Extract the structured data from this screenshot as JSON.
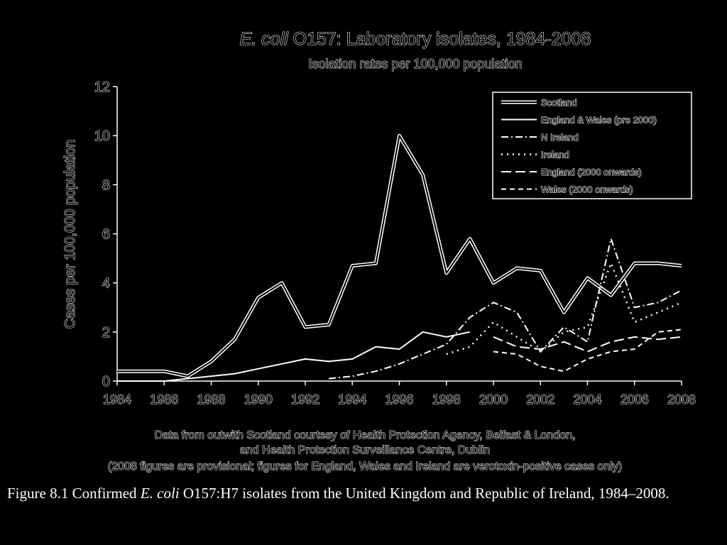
{
  "chart_data": {
    "type": "line",
    "title_italic": "E. coli",
    "title_rest": " O157: Laboratory isolates, 1984-2008",
    "subtitle": "Isolation rates per 100,000 population",
    "ylabel": "Cases per 100,000 population",
    "xlabel": "",
    "xlim": [
      1984,
      2008
    ],
    "ylim": [
      0,
      12
    ],
    "yticks": [
      "0",
      "2",
      "4",
      "6",
      "8",
      "10",
      "12"
    ],
    "xticks": [
      "1984",
      "1986",
      "1988",
      "1990",
      "1992",
      "1994",
      "1996",
      "1998",
      "2000",
      "2002",
      "2004",
      "2006",
      "2008"
    ],
    "legend_position": "top-right",
    "grid": false,
    "series": [
      {
        "name": "Scotland",
        "style": "double-solid",
        "points": [
          [
            1984,
            0.4
          ],
          [
            1985,
            0.4
          ],
          [
            1986,
            0.4
          ],
          [
            1987,
            0.2
          ],
          [
            1988,
            0.8
          ],
          [
            1989,
            1.7
          ],
          [
            1990,
            3.4
          ],
          [
            1991,
            4.0
          ],
          [
            1992,
            2.2
          ],
          [
            1993,
            2.3
          ],
          [
            1994,
            4.7
          ],
          [
            1995,
            4.8
          ],
          [
            1996,
            10.0
          ],
          [
            1997,
            8.4
          ],
          [
            1998,
            4.4
          ],
          [
            1999,
            5.8
          ],
          [
            2000,
            4.0
          ],
          [
            2001,
            4.6
          ],
          [
            2002,
            4.5
          ],
          [
            2003,
            2.8
          ],
          [
            2004,
            4.2
          ],
          [
            2005,
            3.5
          ],
          [
            2006,
            4.8
          ],
          [
            2007,
            4.8
          ],
          [
            2008,
            4.7
          ]
        ]
      },
      {
        "name": "England & Wales (pre 2000)",
        "style": "solid",
        "points": [
          [
            1984,
            0.0
          ],
          [
            1985,
            0.0
          ],
          [
            1986,
            0.0
          ],
          [
            1987,
            0.1
          ],
          [
            1988,
            0.2
          ],
          [
            1989,
            0.3
          ],
          [
            1990,
            0.5
          ],
          [
            1991,
            0.7
          ],
          [
            1992,
            0.9
          ],
          [
            1993,
            0.8
          ],
          [
            1994,
            0.9
          ],
          [
            1995,
            1.4
          ],
          [
            1996,
            1.3
          ],
          [
            1997,
            2.0
          ],
          [
            1998,
            1.8
          ],
          [
            1999,
            2.0
          ]
        ]
      },
      {
        "name": "N Ireland",
        "style": "dash-dot",
        "points": [
          [
            1993,
            0.1
          ],
          [
            1994,
            0.2
          ],
          [
            1995,
            0.4
          ],
          [
            1996,
            0.7
          ],
          [
            1997,
            1.1
          ],
          [
            1998,
            1.5
          ],
          [
            1999,
            2.6
          ],
          [
            2000,
            3.2
          ],
          [
            2001,
            2.8
          ],
          [
            2002,
            1.2
          ],
          [
            2003,
            2.2
          ],
          [
            2004,
            1.6
          ],
          [
            2005,
            5.8
          ],
          [
            2006,
            3.0
          ],
          [
            2007,
            3.2
          ],
          [
            2008,
            3.7
          ]
        ]
      },
      {
        "name": "Ireland",
        "style": "dotted",
        "points": [
          [
            1998,
            1.1
          ],
          [
            1999,
            1.4
          ],
          [
            2000,
            2.4
          ],
          [
            2001,
            1.8
          ],
          [
            2002,
            1.2
          ],
          [
            2003,
            2.0
          ],
          [
            2004,
            2.2
          ],
          [
            2005,
            4.8
          ],
          [
            2006,
            2.4
          ],
          [
            2007,
            2.8
          ],
          [
            2008,
            3.2
          ]
        ]
      },
      {
        "name": "England (2000 onwards)",
        "style": "long-dash",
        "points": [
          [
            2000,
            1.8
          ],
          [
            2001,
            1.4
          ],
          [
            2002,
            1.3
          ],
          [
            2003,
            1.6
          ],
          [
            2004,
            1.2
          ],
          [
            2005,
            1.6
          ],
          [
            2006,
            1.8
          ],
          [
            2007,
            1.7
          ],
          [
            2008,
            1.8
          ]
        ]
      },
      {
        "name": "Wales (2000 onwards)",
        "style": "dash",
        "points": [
          [
            2000,
            1.2
          ],
          [
            2001,
            1.1
          ],
          [
            2002,
            0.6
          ],
          [
            2003,
            0.4
          ],
          [
            2004,
            0.9
          ],
          [
            2005,
            1.2
          ],
          [
            2006,
            1.3
          ],
          [
            2007,
            2.0
          ],
          [
            2008,
            2.1
          ]
        ]
      }
    ],
    "notes": [
      "Data from outwith Scotland courtesy of Health Protection Agency, Belfast & London,",
      "and Health Protection Surveillance Centre, Dublin",
      "(2008 figures are provisional; figures for England, Wales and Ireland are verotoxin-positive cases only)"
    ]
  },
  "caption": {
    "prefix": "Figure 8.1  Confirmed ",
    "italic": "E. coli",
    "rest": " O157:H7 isolates from the United Kingdom and Republic of Ireland, 1984–2008."
  }
}
